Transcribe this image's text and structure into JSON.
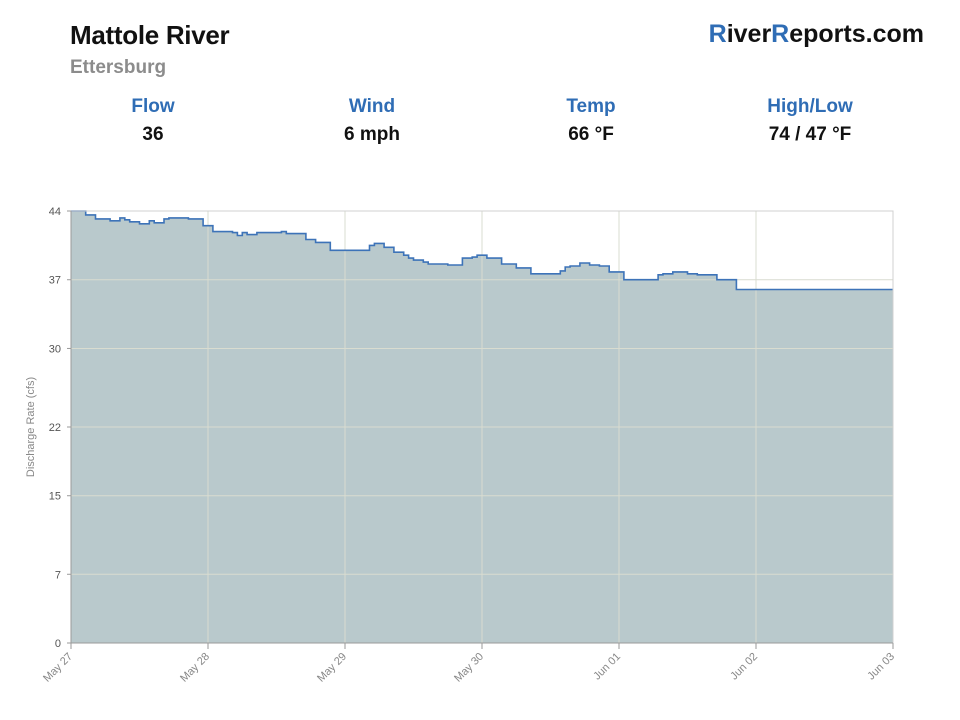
{
  "header": {
    "river": "Mattole River",
    "location": "Ettersburg"
  },
  "brand": {
    "r1": "R",
    "part1": "iver",
    "r2": "R",
    "part2": "eports.com",
    "accent_color": "#2f6db5"
  },
  "stats": [
    {
      "label": "Flow",
      "value": "36"
    },
    {
      "label": "Wind",
      "value": "6 mph"
    },
    {
      "label": "Temp",
      "value": "66 °F"
    },
    {
      "label": "High/Low",
      "value": "74 / 47 °F"
    }
  ],
  "chart_data": {
    "type": "area",
    "title": "",
    "xlabel": "",
    "ylabel": "Discharge Rate (cfs)",
    "ylim": [
      0,
      44
    ],
    "yticks": [
      0,
      7,
      15,
      22,
      30,
      37,
      44
    ],
    "xticks": [
      "May 27",
      "May 28",
      "May 29",
      "May 30",
      "Jun 01",
      "Jun 02",
      "Jun 03"
    ],
    "xlim": [
      "2024-05-27",
      "2024-06-03"
    ],
    "grid": true,
    "fill_color": "#b9c9cc",
    "line_color": "#3d73b8",
    "series": [
      {
        "interpolation": "step",
        "x": [
          "2024-05-27T00:00",
          "2024-05-27T03:00",
          "2024-05-27T05:00",
          "2024-05-27T08:00",
          "2024-05-27T10:00",
          "2024-05-27T11:00",
          "2024-05-27T12:00",
          "2024-05-27T14:00",
          "2024-05-27T16:00",
          "2024-05-27T17:00",
          "2024-05-27T19:00",
          "2024-05-27T20:00",
          "2024-05-28T00:00",
          "2024-05-28T03:00",
          "2024-05-28T05:00",
          "2024-05-28T09:00",
          "2024-05-28T10:00",
          "2024-05-28T11:00",
          "2024-05-28T12:00",
          "2024-05-28T14:00",
          "2024-05-28T19:00",
          "2024-05-28T20:00",
          "2024-05-29T00:00",
          "2024-05-29T02:00",
          "2024-05-29T05:00",
          "2024-05-29T13:00",
          "2024-05-29T14:00",
          "2024-05-29T16:00",
          "2024-05-29T18:00",
          "2024-05-29T20:00",
          "2024-05-29T21:00",
          "2024-05-29T22:00",
          "2024-05-30T00:00",
          "2024-05-30T01:00",
          "2024-05-30T05:00",
          "2024-05-30T08:00",
          "2024-05-30T10:00",
          "2024-05-30T11:00",
          "2024-05-30T13:00",
          "2024-05-30T16:00",
          "2024-05-30T19:00",
          "2024-05-30T22:00",
          "2024-05-31T04:00",
          "2024-05-31T05:00",
          "2024-05-31T06:00",
          "2024-05-31T08:00",
          "2024-05-31T10:00",
          "2024-05-31T12:00",
          "2024-05-31T14:00",
          "2024-05-31T17:00",
          "2024-05-31T20:00",
          "2024-06-01T00:00",
          "2024-06-01T01:00",
          "2024-06-01T03:00",
          "2024-06-01T06:00",
          "2024-06-01T08:00",
          "2024-06-01T12:00",
          "2024-06-01T16:00",
          "2024-06-01T22:00"
        ],
        "values": [
          44,
          43.6,
          43.2,
          43.0,
          43.3,
          43.1,
          42.9,
          42.7,
          43.0,
          42.8,
          43.2,
          43.3,
          43.2,
          42.5,
          41.9,
          41.8,
          41.5,
          41.8,
          41.6,
          41.8,
          41.9,
          41.7,
          41.1,
          40.8,
          40.0,
          40.5,
          40.7,
          40.3,
          39.8,
          39.5,
          39.2,
          39.0,
          38.8,
          38.6,
          38.5,
          39.2,
          39.3,
          39.5,
          39.2,
          38.6,
          38.2,
          37.6,
          37.9,
          38.3,
          38.4,
          38.7,
          38.5,
          38.4,
          37.8,
          37.0,
          37.0,
          37.5,
          37.6,
          37.8,
          37.6,
          37.5,
          37.0,
          36.0,
          36.0
        ]
      }
    ]
  }
}
